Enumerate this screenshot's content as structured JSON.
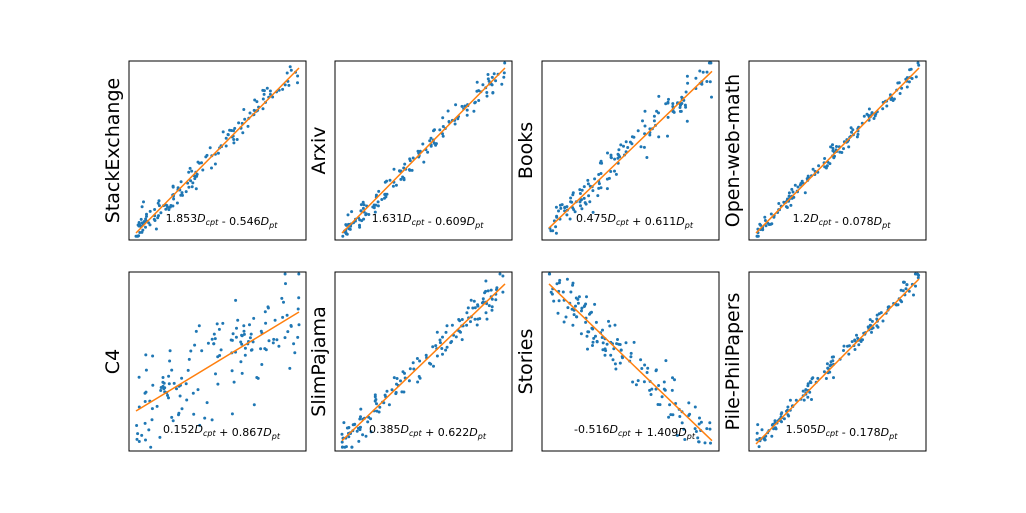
{
  "colors": {
    "points": "#1f77b4",
    "fit_line": "#ff7f0e",
    "frame": "#000000"
  },
  "chart_data": [
    {
      "type": "scatter",
      "title": "StackExchange",
      "equation": {
        "a": "1.853",
        "sub_a": "cpt",
        "op": "-",
        "b": "0.546",
        "sub_b": "pt"
      },
      "fit": {
        "slope": 1.0,
        "intercept": 0.0
      },
      "noise": 0.04,
      "seed": 11
    },
    {
      "type": "scatter",
      "title": "Arxiv",
      "equation": {
        "a": "1.631",
        "sub_a": "cpt",
        "op": "-",
        "b": "0.609",
        "sub_b": "pt"
      },
      "fit": {
        "slope": 1.0,
        "intercept": 0.0
      },
      "noise": 0.035,
      "seed": 23
    },
    {
      "type": "scatter",
      "title": "Books",
      "equation": {
        "a": "0.475",
        "sub_a": "cpt",
        "op": "+",
        "b": "0.611",
        "sub_b": "pt"
      },
      "fit": {
        "slope": 0.95,
        "intercept": 0.03
      },
      "noise": 0.065,
      "seed": 37
    },
    {
      "type": "scatter",
      "title": "Open-web-math",
      "equation": {
        "a": "1.2",
        "sub_a": "cpt",
        "op": "-",
        "b": "0.078",
        "sub_b": "pt"
      },
      "fit": {
        "slope": 1.0,
        "intercept": 0.0
      },
      "noise": 0.025,
      "seed": 41
    },
    {
      "type": "scatter",
      "title": "C4",
      "equation": {
        "a": "0.152",
        "sub_a": "cpt",
        "op": "+",
        "b": "0.867",
        "sub_b": "pt"
      },
      "fit": {
        "slope": 0.6,
        "intercept": 0.2
      },
      "noise": 0.14,
      "seed": 53
    },
    {
      "type": "scatter",
      "title": "SlimPajama",
      "equation": {
        "a": "0.385",
        "sub_a": "cpt",
        "op": "+",
        "b": "0.622",
        "sub_b": "pt"
      },
      "fit": {
        "slope": 0.95,
        "intercept": 0.02
      },
      "noise": 0.05,
      "seed": 67
    },
    {
      "type": "scatter",
      "title": "Stories",
      "equation": {
        "a": "-0.516",
        "sub_a": "cpt",
        "op": "+",
        "b": "1.409",
        "sub_b": "pt"
      },
      "fit": {
        "slope": -0.95,
        "intercept": 0.97
      },
      "noise": 0.07,
      "seed": 79
    },
    {
      "type": "scatter",
      "title": "Pile-PhilPapers",
      "equation": {
        "a": "1.505",
        "sub_a": "cpt",
        "op": "-",
        "b": "0.178",
        "sub_b": "pt"
      },
      "fit": {
        "slope": 1.0,
        "intercept": 0.0
      },
      "noise": 0.035,
      "seed": 97
    }
  ]
}
